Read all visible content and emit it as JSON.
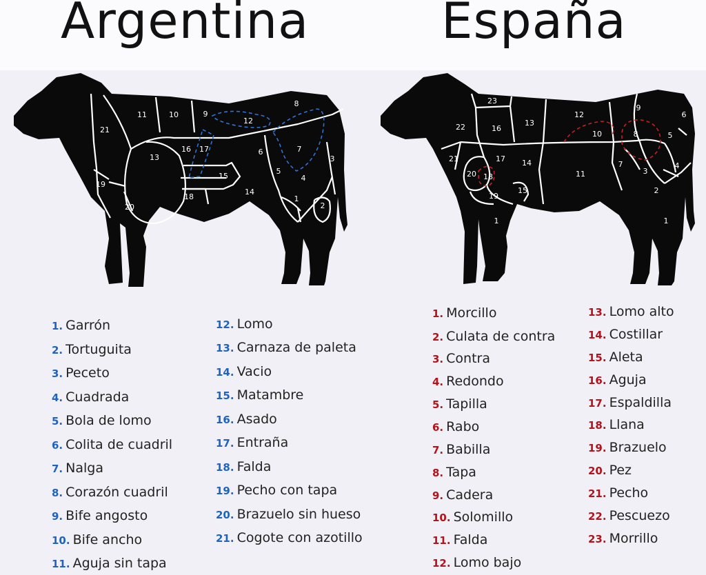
{
  "argentina": {
    "title": "Argentina",
    "accent_color": "#1f63c0",
    "diagram_labels": [
      "1",
      "2",
      "3",
      "4",
      "5",
      "6",
      "7",
      "8",
      "9",
      "10",
      "11",
      "12",
      "13",
      "14",
      "15",
      "16",
      "17",
      "18",
      "19",
      "20",
      "21"
    ],
    "legend": [
      {
        "num": "1.",
        "name": "Garrón"
      },
      {
        "num": "2.",
        "name": "Tortuguita"
      },
      {
        "num": "3.",
        "name": "Peceto"
      },
      {
        "num": "4.",
        "name": "Cuadrada"
      },
      {
        "num": "5.",
        "name": "Bola de lomo"
      },
      {
        "num": "6.",
        "name": "Colita de cuadril"
      },
      {
        "num": "7.",
        "name": "Nalga"
      },
      {
        "num": "8.",
        "name": "Corazón cuadril"
      },
      {
        "num": "9.",
        "name": "Bife angosto"
      },
      {
        "num": "10.",
        "name": "Bife ancho"
      },
      {
        "num": "11.",
        "name": "Aguja sin tapa"
      },
      {
        "num": "12.",
        "name": "Lomo"
      },
      {
        "num": "13.",
        "name": "Carnaza de paleta"
      },
      {
        "num": "14.",
        "name": "Vacio"
      },
      {
        "num": "15.",
        "name": "Matambre"
      },
      {
        "num": "16.",
        "name": "Asado"
      },
      {
        "num": "17.",
        "name": "Entraña"
      },
      {
        "num": "18.",
        "name": "Falda"
      },
      {
        "num": "19.",
        "name": "Pecho con tapa"
      },
      {
        "num": "20.",
        "name": "Brazuelo sin hueso"
      },
      {
        "num": "21.",
        "name": "Cogote con azotillo"
      }
    ]
  },
  "espana": {
    "title": "España",
    "accent_color": "#b5121b",
    "diagram_labels": [
      "1",
      "2",
      "3",
      "4",
      "5",
      "6",
      "7",
      "8",
      "9",
      "10",
      "11",
      "12",
      "13",
      "14",
      "15",
      "16",
      "17",
      "18",
      "19",
      "20",
      "21",
      "22",
      "23",
      "1"
    ],
    "legend": [
      {
        "num": "1.",
        "name": "Morcillo"
      },
      {
        "num": "2.",
        "name": "Culata de contra"
      },
      {
        "num": "3.",
        "name": "Contra"
      },
      {
        "num": "4.",
        "name": "Redondo"
      },
      {
        "num": "5.",
        "name": "Tapilla"
      },
      {
        "num": "6.",
        "name": "Rabo"
      },
      {
        "num": "7.",
        "name": "Babilla"
      },
      {
        "num": "8.",
        "name": "Tapa"
      },
      {
        "num": "9.",
        "name": "Cadera"
      },
      {
        "num": "10.",
        "name": "Solomillo"
      },
      {
        "num": "11.",
        "name": "Falda"
      },
      {
        "num": "12.",
        "name": "Lomo bajo"
      },
      {
        "num": "13.",
        "name": "Lomo alto"
      },
      {
        "num": "14.",
        "name": "Costillar"
      },
      {
        "num": "15.",
        "name": "Aleta"
      },
      {
        "num": "16.",
        "name": "Aguja"
      },
      {
        "num": "17.",
        "name": "Espaldilla"
      },
      {
        "num": "18.",
        "name": "Llana"
      },
      {
        "num": "19.",
        "name": "Brazuelo"
      },
      {
        "num": "20.",
        "name": "Pez"
      },
      {
        "num": "21.",
        "name": "Pecho"
      },
      {
        "num": "22.",
        "name": "Pescuezo"
      },
      {
        "num": "23.",
        "name": "Morrillo"
      }
    ]
  }
}
